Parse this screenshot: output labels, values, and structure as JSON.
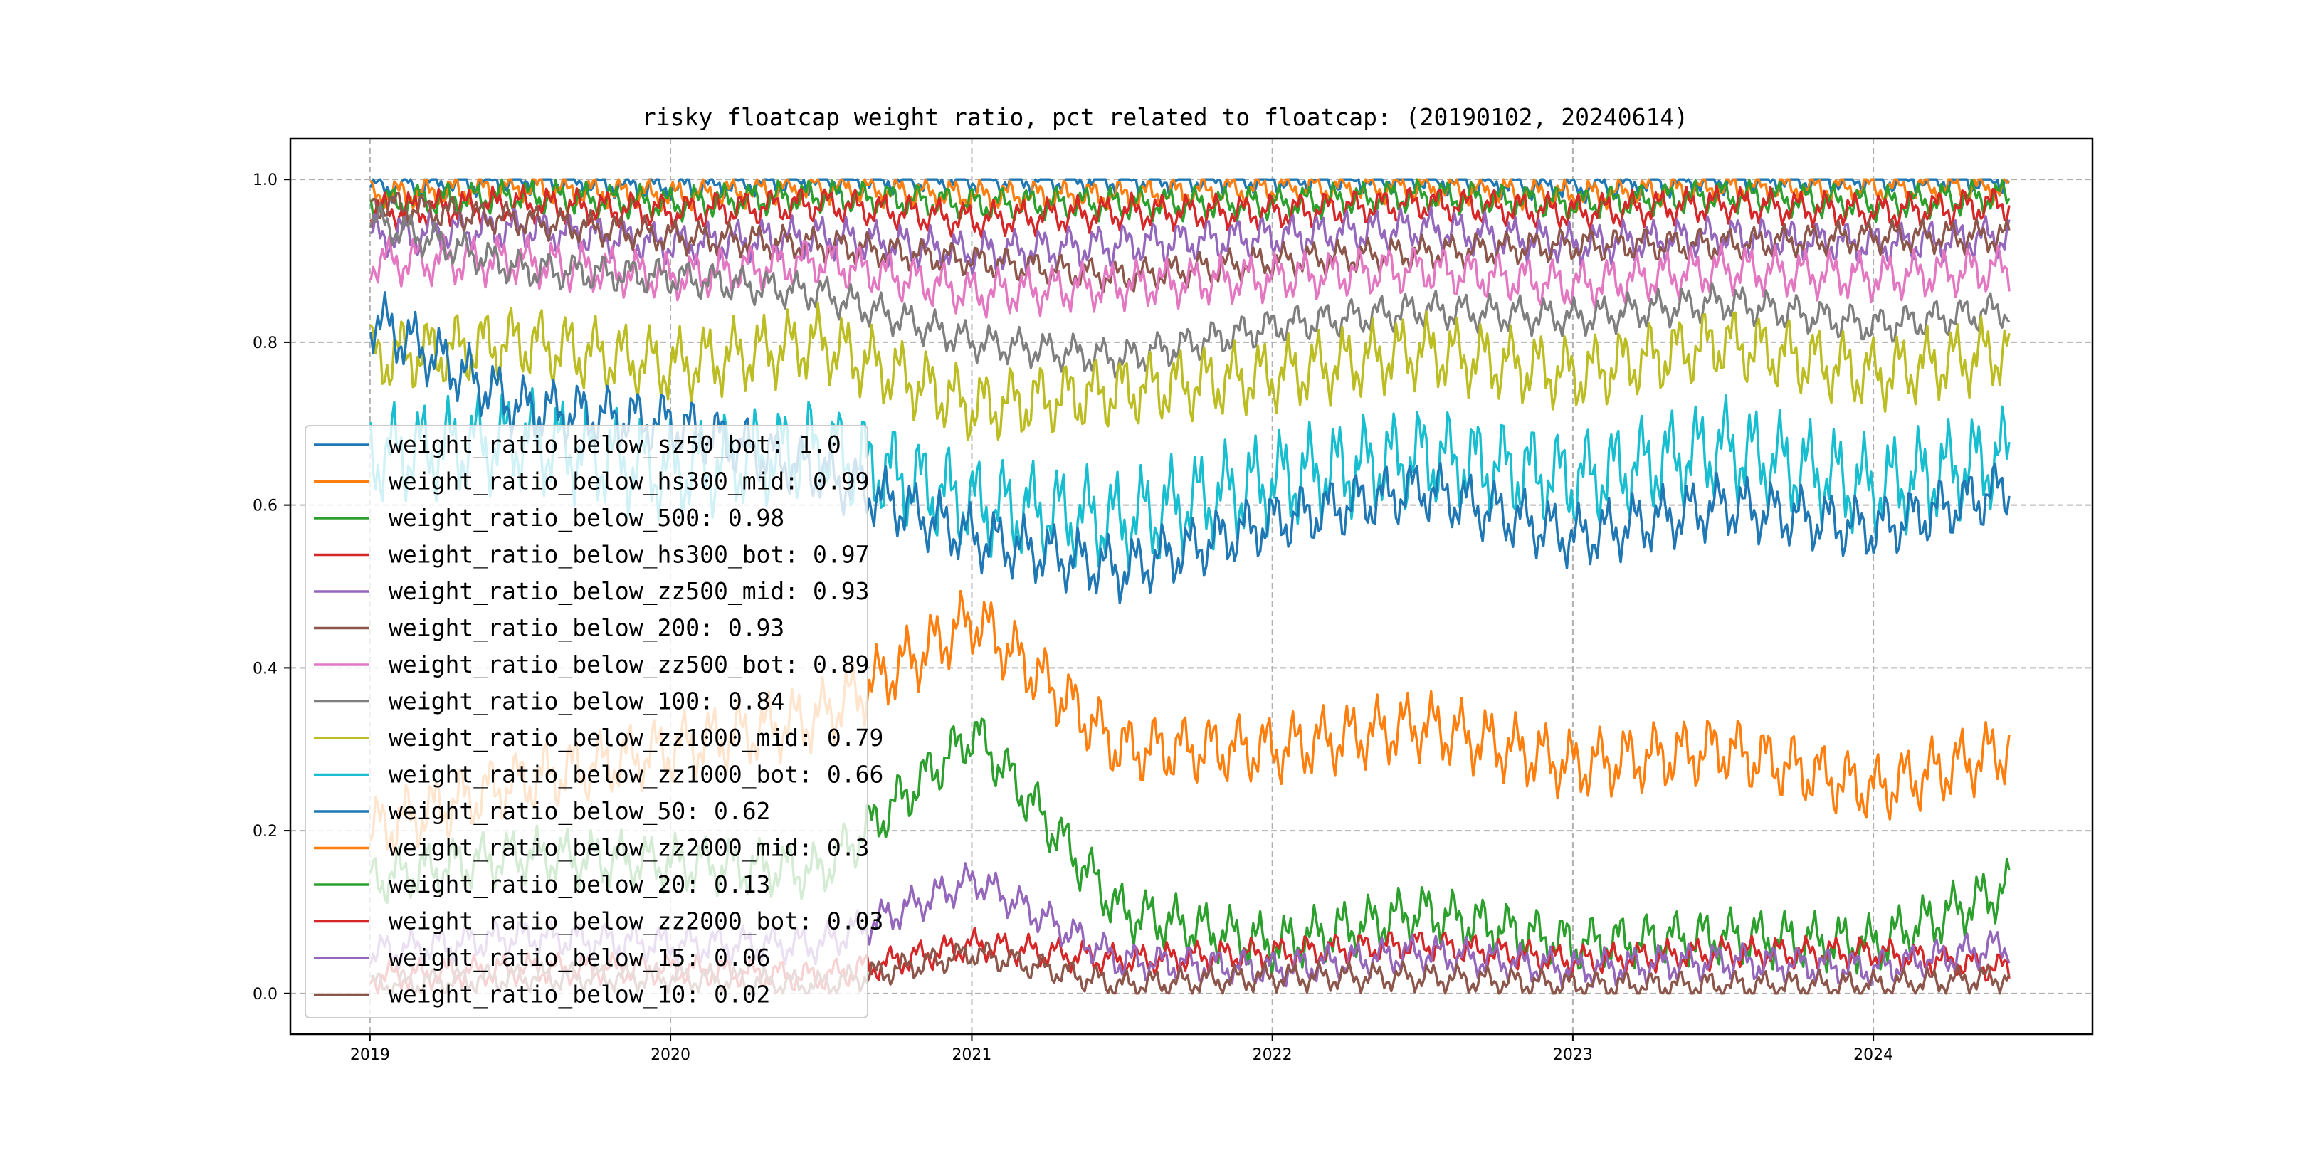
{
  "chart_data": {
    "type": "line",
    "title": "risky floatcap weight ratio, pct related to floatcap: (20190102, 20240614)",
    "xlabel": "",
    "ylabel": "",
    "x_range": [
      "2019-01-02",
      "2024-06-14"
    ],
    "x_ticks": [
      {
        "label": "2019",
        "date": "2019-01-01"
      },
      {
        "label": "2020",
        "date": "2020-01-01"
      },
      {
        "label": "2021",
        "date": "2021-01-01"
      },
      {
        "label": "2022",
        "date": "2022-01-01"
      },
      {
        "label": "2023",
        "date": "2023-01-01"
      },
      {
        "label": "2024",
        "date": "2024-01-01"
      }
    ],
    "ylim": [
      -0.05,
      1.05
    ],
    "y_ticks": [
      "0.0",
      "0.2",
      "0.4",
      "0.6",
      "0.8",
      "1.0"
    ],
    "grid": true,
    "legend_position": "lower-left",
    "series": [
      {
        "name": "weight_ratio_below_sz50_bot: 1.0",
        "color": "#1f77b4",
        "x": [
          "2019-01-02",
          "2019-07-01",
          "2020-01-02",
          "2020-07-01",
          "2021-01-04",
          "2021-07-01",
          "2022-01-04",
          "2022-07-01",
          "2023-01-03",
          "2023-07-03",
          "2024-01-02",
          "2024-06-14"
        ],
        "y": [
          0.99,
          1.0,
          0.99,
          1.0,
          1.0,
          1.0,
          1.0,
          1.0,
          0.99,
          1.0,
          1.0,
          1.0
        ]
      },
      {
        "name": "weight_ratio_below_hs300_mid: 0.99",
        "color": "#ff7f0e",
        "x": [
          "2019-01-02",
          "2019-07-01",
          "2020-01-02",
          "2020-07-01",
          "2021-01-04",
          "2021-07-01",
          "2022-01-04",
          "2022-07-01",
          "2023-01-03",
          "2023-07-03",
          "2024-01-02",
          "2024-06-14"
        ],
        "y": [
          0.98,
          0.99,
          0.98,
          0.99,
          0.98,
          0.98,
          0.99,
          0.99,
          0.98,
          0.99,
          0.99,
          0.99
        ]
      },
      {
        "name": "weight_ratio_below_500: 0.98",
        "color": "#2ca02c",
        "x": [
          "2019-01-02",
          "2019-07-01",
          "2020-01-02",
          "2020-07-01",
          "2021-01-04",
          "2021-07-01",
          "2022-01-04",
          "2022-07-01",
          "2023-01-03",
          "2023-07-03",
          "2024-01-02",
          "2024-06-14"
        ],
        "y": [
          0.97,
          0.98,
          0.97,
          0.98,
          0.97,
          0.97,
          0.97,
          0.98,
          0.97,
          0.98,
          0.97,
          0.98
        ]
      },
      {
        "name": "weight_ratio_below_hs300_bot: 0.97",
        "color": "#d62728",
        "x": [
          "2019-01-02",
          "2019-07-01",
          "2020-01-02",
          "2020-07-01",
          "2021-01-04",
          "2021-07-01",
          "2022-01-04",
          "2022-07-01",
          "2023-01-03",
          "2023-07-03",
          "2024-01-02",
          "2024-06-14"
        ],
        "y": [
          0.96,
          0.97,
          0.96,
          0.97,
          0.95,
          0.96,
          0.96,
          0.97,
          0.96,
          0.97,
          0.96,
          0.97
        ]
      },
      {
        "name": "weight_ratio_below_zz500_mid: 0.93",
        "color": "#9467bd",
        "x": [
          "2019-01-02",
          "2019-07-01",
          "2020-01-02",
          "2020-07-01",
          "2021-01-04",
          "2021-07-01",
          "2022-01-04",
          "2022-07-01",
          "2023-01-03",
          "2023-07-03",
          "2024-01-02",
          "2024-06-14"
        ],
        "y": [
          0.93,
          0.94,
          0.92,
          0.93,
          0.91,
          0.92,
          0.93,
          0.94,
          0.92,
          0.93,
          0.92,
          0.93
        ]
      },
      {
        "name": "weight_ratio_below_200: 0.93",
        "color": "#8c564b",
        "x": [
          "2019-01-02",
          "2019-07-01",
          "2020-01-02",
          "2020-07-01",
          "2021-01-04",
          "2021-07-01",
          "2022-01-04",
          "2022-07-01",
          "2023-01-03",
          "2023-07-03",
          "2024-01-02",
          "2024-06-14"
        ],
        "y": [
          0.97,
          0.95,
          0.93,
          0.92,
          0.9,
          0.88,
          0.9,
          0.91,
          0.92,
          0.92,
          0.93,
          0.93
        ]
      },
      {
        "name": "weight_ratio_below_zz500_bot: 0.89",
        "color": "#e377c2",
        "x": [
          "2019-01-02",
          "2019-07-01",
          "2020-01-02",
          "2020-07-01",
          "2021-01-04",
          "2021-07-01",
          "2022-01-04",
          "2022-07-01",
          "2023-01-03",
          "2023-07-03",
          "2024-01-02",
          "2024-06-14"
        ],
        "y": [
          0.9,
          0.9,
          0.88,
          0.9,
          0.86,
          0.87,
          0.88,
          0.89,
          0.87,
          0.89,
          0.88,
          0.89
        ]
      },
      {
        "name": "weight_ratio_below_100: 0.84",
        "color": "#7f7f7f",
        "x": [
          "2019-01-02",
          "2019-07-01",
          "2020-01-02",
          "2020-07-01",
          "2021-01-04",
          "2021-07-01",
          "2022-01-04",
          "2022-07-01",
          "2023-01-03",
          "2023-07-03",
          "2024-01-02",
          "2024-06-14"
        ],
        "y": [
          0.95,
          0.89,
          0.88,
          0.86,
          0.8,
          0.78,
          0.82,
          0.84,
          0.83,
          0.85,
          0.82,
          0.84
        ]
      },
      {
        "name": "weight_ratio_below_zz1000_mid: 0.79",
        "color": "#bcbd22",
        "x": [
          "2019-01-02",
          "2019-07-01",
          "2020-01-02",
          "2020-07-01",
          "2021-01-04",
          "2021-07-01",
          "2022-01-04",
          "2022-07-01",
          "2023-01-03",
          "2023-07-03",
          "2024-01-02",
          "2024-06-14"
        ],
        "y": [
          0.78,
          0.8,
          0.77,
          0.8,
          0.72,
          0.74,
          0.76,
          0.79,
          0.76,
          0.8,
          0.76,
          0.79
        ]
      },
      {
        "name": "weight_ratio_below_zz1000_bot: 0.66",
        "color": "#17becf",
        "x": [
          "2019-01-02",
          "2019-07-01",
          "2020-01-02",
          "2020-07-01",
          "2021-01-04",
          "2021-07-01",
          "2022-01-04",
          "2022-07-01",
          "2023-01-03",
          "2023-07-03",
          "2024-01-02",
          "2024-06-14"
        ],
        "y": [
          0.66,
          0.68,
          0.64,
          0.67,
          0.6,
          0.58,
          0.63,
          0.66,
          0.63,
          0.67,
          0.62,
          0.66
        ]
      },
      {
        "name": "weight_ratio_below_50: 0.62",
        "color": "#1f77b4",
        "x": [
          "2019-01-02",
          "2019-07-01",
          "2020-01-02",
          "2020-07-01",
          "2021-01-04",
          "2021-07-01",
          "2022-01-04",
          "2022-07-01",
          "2023-01-03",
          "2023-07-03",
          "2024-01-02",
          "2024-06-14"
        ],
        "y": [
          0.83,
          0.72,
          0.7,
          0.64,
          0.56,
          0.52,
          0.58,
          0.62,
          0.56,
          0.6,
          0.57,
          0.62
        ]
      },
      {
        "name": "weight_ratio_below_zz2000_mid: 0.3",
        "color": "#ff7f0e",
        "x": [
          "2019-01-02",
          "2019-07-01",
          "2020-01-02",
          "2020-07-01",
          "2021-01-04",
          "2021-07-01",
          "2022-01-04",
          "2022-07-01",
          "2023-01-03",
          "2023-07-03",
          "2024-01-02",
          "2024-06-14"
        ],
        "y": [
          0.2,
          0.26,
          0.3,
          0.34,
          0.46,
          0.3,
          0.3,
          0.33,
          0.28,
          0.3,
          0.25,
          0.3
        ]
      },
      {
        "name": "weight_ratio_below_20: 0.13",
        "color": "#2ca02c",
        "x": [
          "2019-01-02",
          "2019-07-01",
          "2020-01-02",
          "2020-07-01",
          "2021-01-04",
          "2021-07-01",
          "2022-01-04",
          "2022-07-01",
          "2023-01-03",
          "2023-07-03",
          "2024-01-02",
          "2024-06-14"
        ],
        "y": [
          0.14,
          0.17,
          0.16,
          0.15,
          0.32,
          0.1,
          0.06,
          0.1,
          0.06,
          0.07,
          0.06,
          0.13
        ]
      },
      {
        "name": "weight_ratio_below_zz2000_bot: 0.03",
        "color": "#d62728",
        "x": [
          "2019-01-02",
          "2019-07-01",
          "2020-01-02",
          "2020-07-01",
          "2021-01-04",
          "2021-07-01",
          "2022-01-04",
          "2022-07-01",
          "2023-01-03",
          "2023-07-03",
          "2024-01-02",
          "2024-06-14"
        ],
        "y": [
          0.02,
          0.03,
          0.03,
          0.02,
          0.06,
          0.04,
          0.05,
          0.06,
          0.04,
          0.05,
          0.05,
          0.03
        ]
      },
      {
        "name": "weight_ratio_below_15: 0.06",
        "color": "#9467bd",
        "x": [
          "2019-01-02",
          "2019-07-01",
          "2020-01-02",
          "2020-07-01",
          "2021-01-04",
          "2021-07-01",
          "2022-01-04",
          "2022-07-01",
          "2023-01-03",
          "2023-07-03",
          "2024-01-02",
          "2024-06-14"
        ],
        "y": [
          0.05,
          0.07,
          0.06,
          0.06,
          0.14,
          0.04,
          0.03,
          0.05,
          0.03,
          0.04,
          0.03,
          0.06
        ]
      },
      {
        "name": "weight_ratio_below_10: 0.02",
        "color": "#8c564b",
        "x": [
          "2019-01-02",
          "2019-07-01",
          "2020-01-02",
          "2020-07-01",
          "2021-01-04",
          "2021-07-01",
          "2022-01-04",
          "2022-07-01",
          "2023-01-03",
          "2023-07-03",
          "2024-01-02",
          "2024-06-14"
        ],
        "y": [
          0.01,
          0.02,
          0.02,
          0.01,
          0.05,
          0.01,
          0.02,
          0.02,
          0.01,
          0.01,
          0.01,
          0.02
        ]
      }
    ]
  }
}
